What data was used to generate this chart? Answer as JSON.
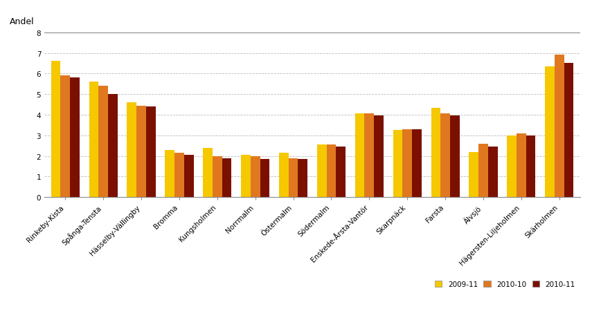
{
  "categories": [
    "Rinkeby-Kista",
    "Spånga-Tensta",
    "Hässelby-Vällingby",
    "Bromma",
    "Kungsholmen",
    "Norrmalm",
    "Östermalm",
    "Södermalm",
    "Enskede-Årsta-Vantör",
    "Skarpnäck",
    "Farsta",
    "Älvsjö",
    "Hägersten-Liljeholmen",
    "Skärholmen"
  ],
  "series": {
    "2009-11": [
      6.6,
      5.6,
      4.6,
      2.3,
      2.4,
      2.05,
      2.15,
      2.55,
      4.05,
      3.25,
      4.35,
      2.2,
      3.0,
      6.35
    ],
    "2010-10": [
      5.9,
      5.4,
      4.45,
      2.15,
      2.0,
      2.0,
      1.9,
      2.55,
      4.05,
      3.3,
      4.05,
      2.6,
      3.1,
      6.9
    ],
    "2010-11": [
      5.8,
      5.0,
      4.4,
      2.05,
      1.9,
      1.85,
      1.85,
      2.45,
      3.95,
      3.3,
      3.95,
      2.45,
      3.0,
      6.5
    ]
  },
  "colors": {
    "2009-11": "#F5C800",
    "2010-10": "#E07820",
    "2010-11": "#7B1000"
  },
  "ylabel": "Andel",
  "ylim": [
    0,
    8
  ],
  "yticks": [
    0,
    1,
    2,
    3,
    4,
    5,
    6,
    7,
    8
  ],
  "legend_labels": [
    "2009-11",
    "2010-10",
    "2010-11"
  ],
  "bar_width": 0.25,
  "figsize": [
    8.55,
    4.77
  ],
  "dpi": 100,
  "background_color": "#ffffff",
  "grid_color": "#bbbbbb",
  "tick_fontsize": 7.5,
  "label_fontsize": 9
}
